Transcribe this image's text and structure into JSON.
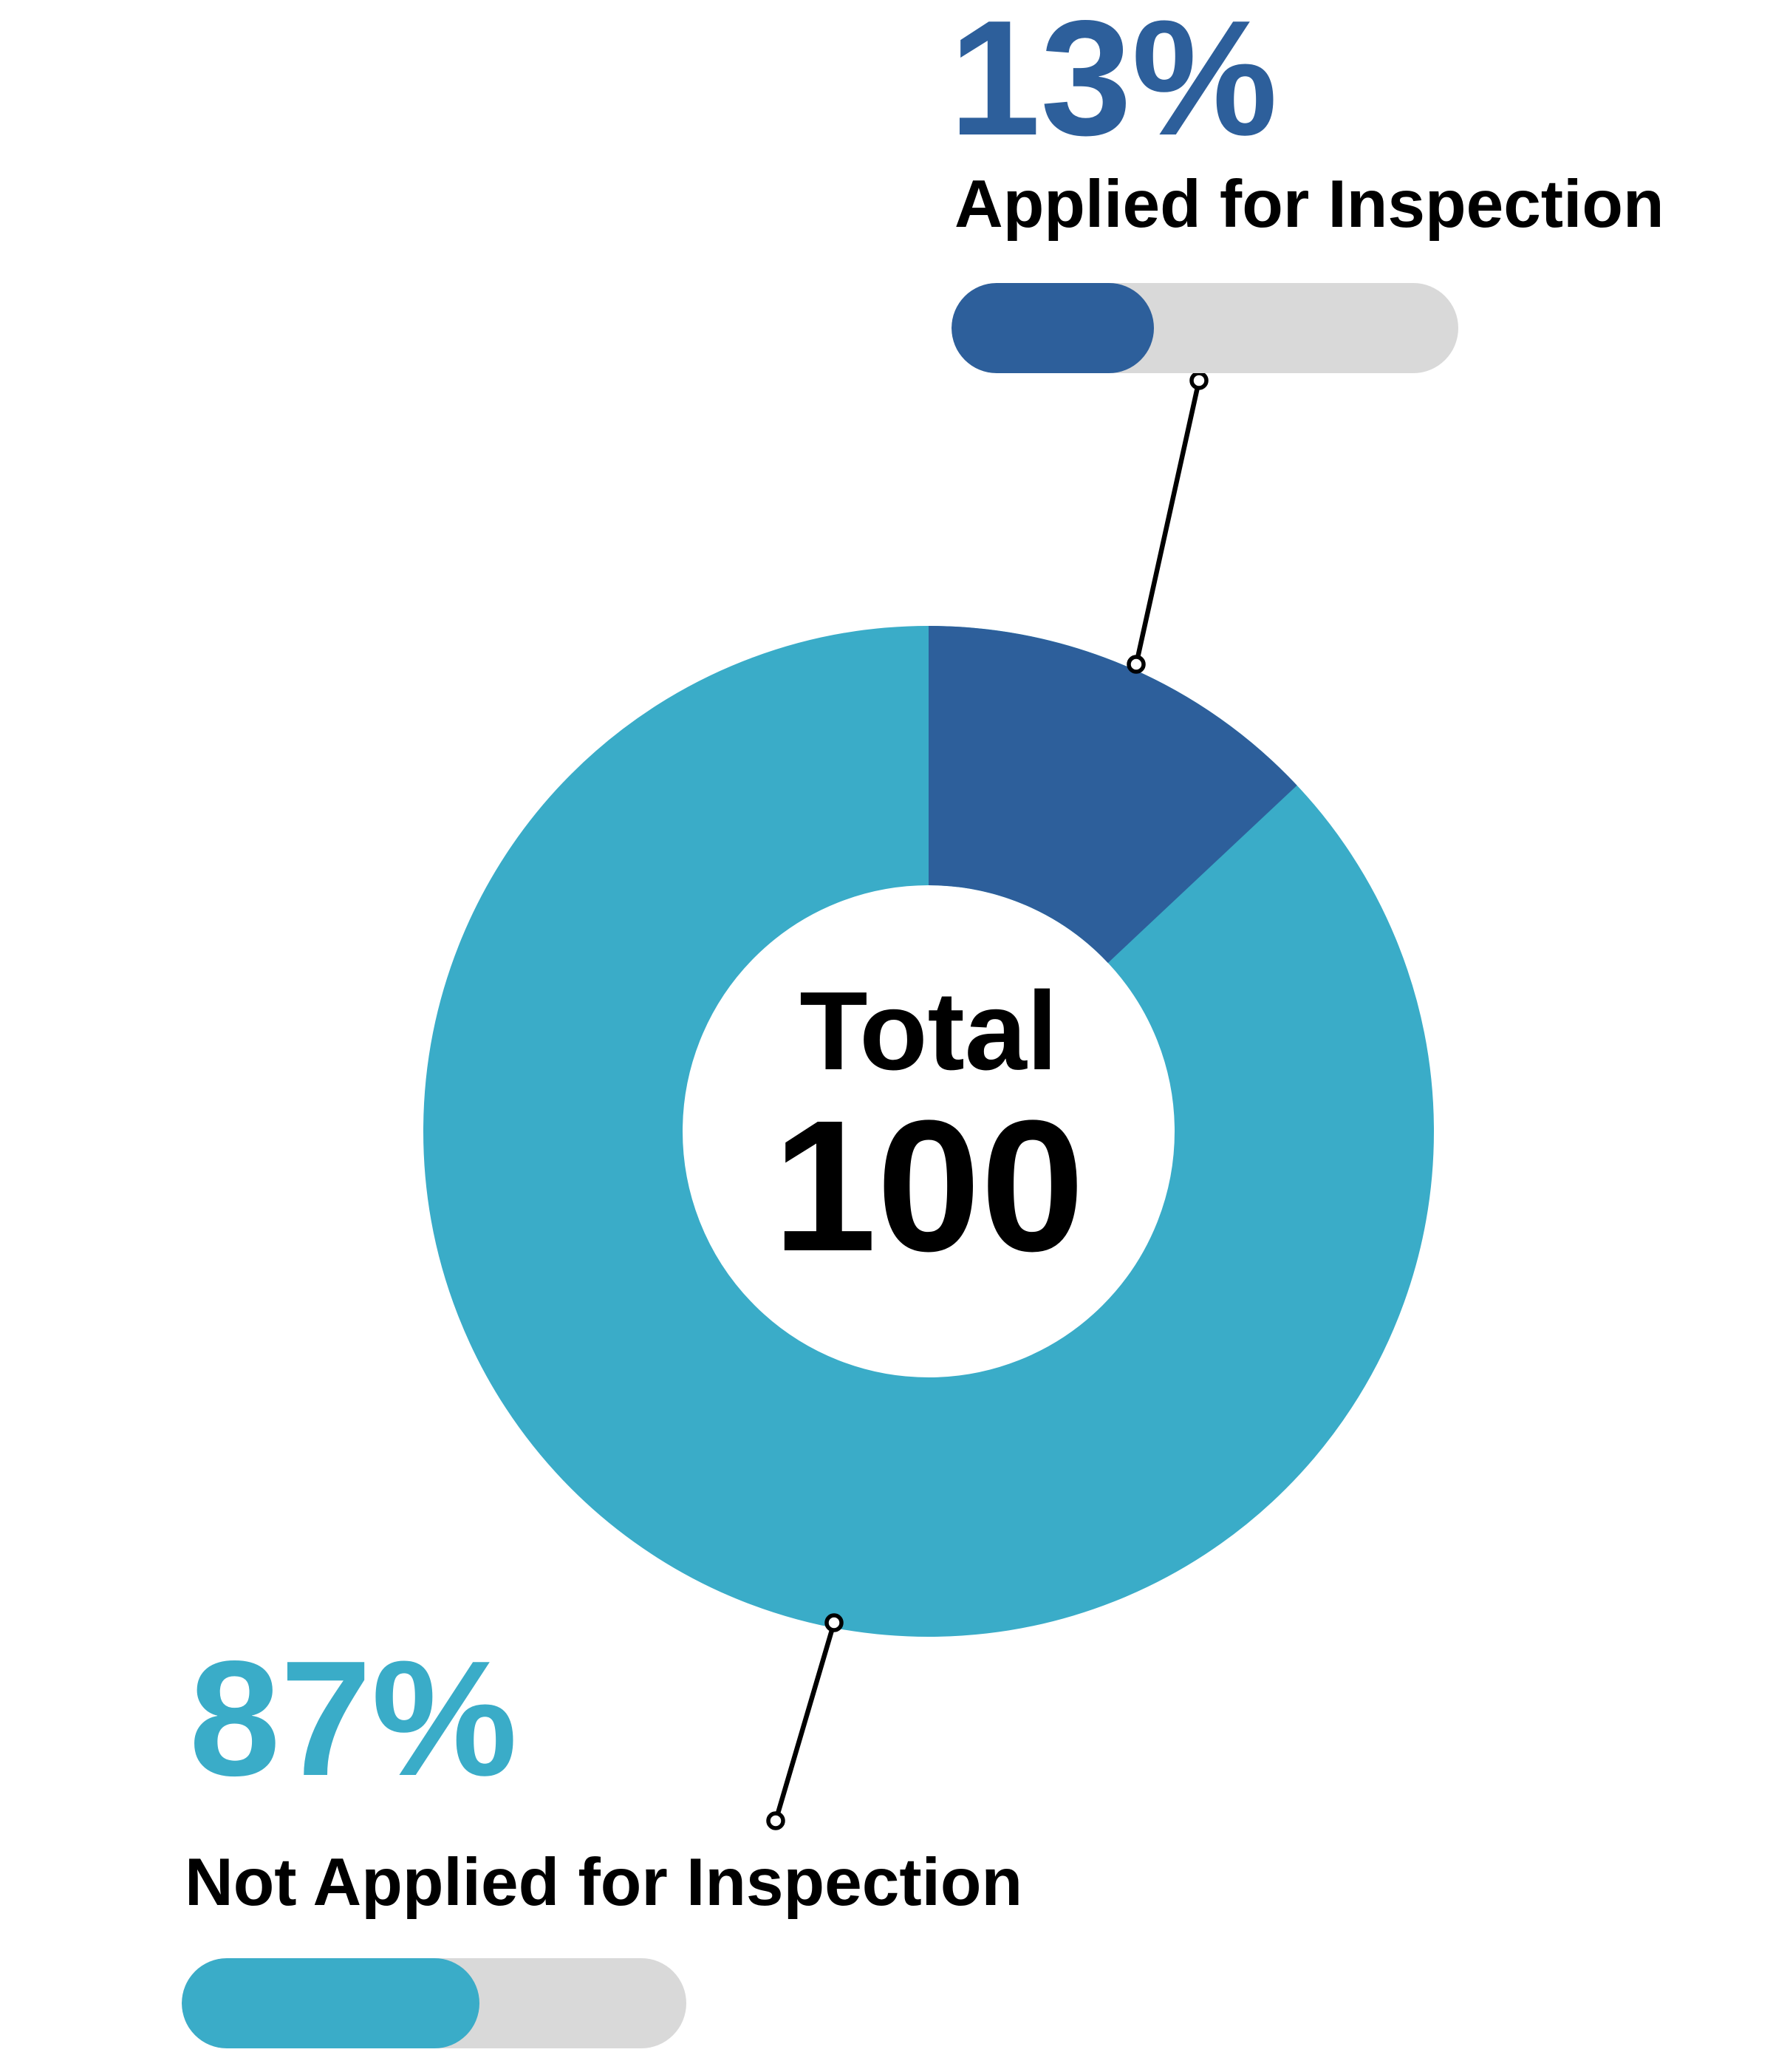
{
  "chart_data": {
    "type": "pie",
    "subtype": "donut",
    "center_label": "Total",
    "center_value": "100",
    "total": 100,
    "categories": [
      "Applied for Inspection",
      "Not Applied for Inspection"
    ],
    "series": [
      {
        "name": "Applied for Inspection",
        "value": 13,
        "percent_label": "13%",
        "color": "#2D5F9B"
      },
      {
        "name": "Not Applied for Inspection",
        "value": 87,
        "percent_label": "87%",
        "color": "#3AACC8"
      }
    ],
    "start_angle_deg": 0,
    "direction": "clockwise",
    "inner_radius_ratio": 0.49,
    "grid": false,
    "legend_position": "callouts"
  },
  "callouts": {
    "applied": {
      "percent": "13%",
      "label": "Applied for Inspection",
      "bar_fill_percent": 40,
      "bar_color": "#2D5F9B",
      "track_color": "#D9D9D9"
    },
    "not_applied": {
      "percent": "87%",
      "label": "Not Applied for Inspection",
      "bar_fill_percent": 59,
      "bar_color": "#3AACC8",
      "track_color": "#D9D9D9"
    }
  },
  "colors": {
    "background": "#FFFFFF",
    "text": "#000000",
    "leader_line": "#000000",
    "leader_dot_fill": "#FFFFFF"
  }
}
